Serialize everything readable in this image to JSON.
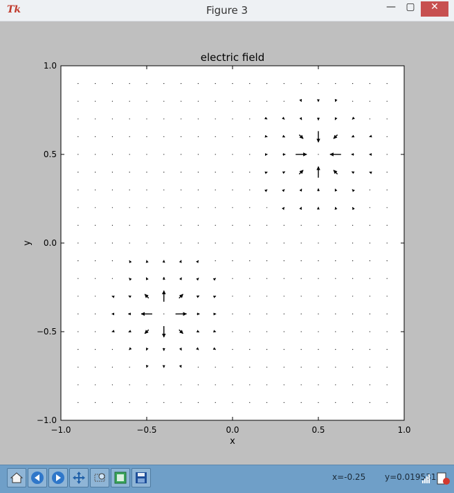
{
  "window": {
    "title": "Figure 3",
    "app_icon": "tk-icon"
  },
  "plot": {
    "title": "electric field",
    "xlabel": "x",
    "ylabel": "y",
    "xticks": [
      "−1.0",
      "−0.5",
      "0.0",
      "0.5",
      "1.0"
    ],
    "yticks": [
      "1.0",
      "0.5",
      "0.0",
      "−0.5",
      "−1.0"
    ]
  },
  "chart_data": {
    "type": "quiver",
    "title": "electric field",
    "xlabel": "x",
    "ylabel": "y",
    "xlim": [
      -1.0,
      1.0
    ],
    "ylim": [
      -1.0,
      1.0
    ],
    "grid": false,
    "grid_x": [
      -0.9,
      -0.8,
      -0.7,
      -0.6,
      -0.5,
      -0.4,
      -0.3,
      -0.2,
      -0.1,
      0.0,
      0.1,
      0.2,
      0.3,
      0.4,
      0.5,
      0.6,
      0.7,
      0.8,
      0.9
    ],
    "grid_y": [
      -0.9,
      -0.8,
      -0.7,
      -0.6,
      -0.5,
      -0.4,
      -0.3,
      -0.2,
      -0.1,
      0.0,
      0.1,
      0.2,
      0.3,
      0.4,
      0.5,
      0.6,
      0.7,
      0.8,
      0.9
    ],
    "sources": [
      {
        "x": -0.4,
        "y": -0.4,
        "field": "outward"
      },
      {
        "x": 0.5,
        "y": 0.5,
        "field": "inward"
      }
    ]
  },
  "toolbar": {
    "buttons": [
      {
        "name": "home-button",
        "icon": "home-icon"
      },
      {
        "name": "back-button",
        "icon": "back-arrow-icon"
      },
      {
        "name": "forward-button",
        "icon": "forward-arrow-icon"
      },
      {
        "name": "pan-button",
        "icon": "move-icon"
      },
      {
        "name": "zoom-button",
        "icon": "zoom-rect-icon"
      },
      {
        "name": "configure-subplots-button",
        "icon": "subplots-icon"
      },
      {
        "name": "save-button",
        "icon": "save-icon"
      }
    ],
    "x_readout": "x=-0.25",
    "y_readout": "y=0.0195312"
  },
  "colors": {
    "toolbar_bg": "#6f9fc8",
    "figure_bg": "#bfbfbf",
    "axes_bg": "#ffffff",
    "close_red": "#c75050"
  }
}
